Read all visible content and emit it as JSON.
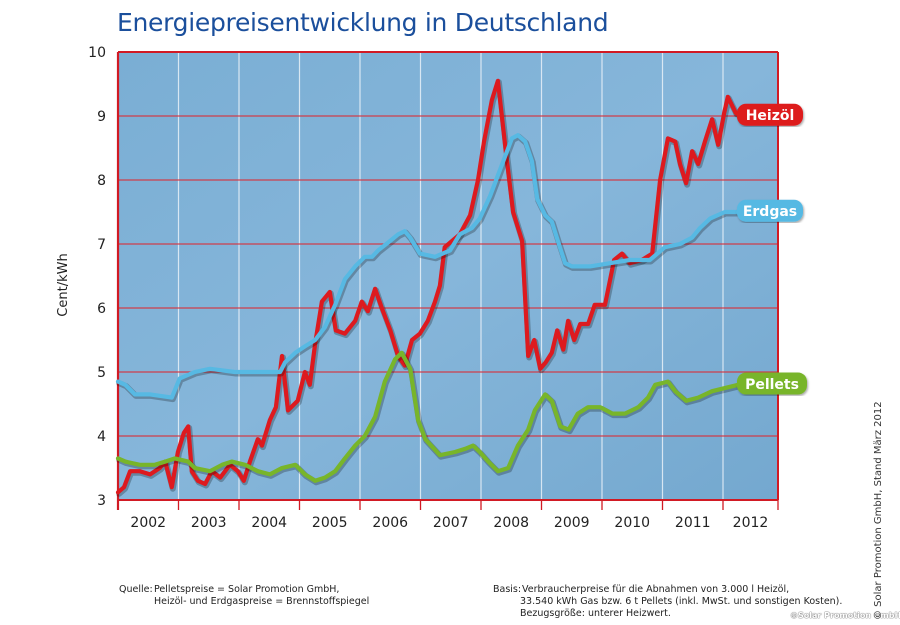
{
  "title": "Energiepreisentwicklung in Deutschland",
  "footer": {
    "source_label": "Quelle:",
    "source_lines": [
      "Pelletspreise = Solar Promotion GmbH,",
      "Heizöl- und Erdgaspreise = Brennstoffspiegel"
    ],
    "basis_label": "Basis:",
    "basis_lines": [
      "Verbraucherpreise für die Abnahmen von 3.000 l Heizöl,",
      "33.540 kWh Gas bzw. 6 t Pellets (inkl. MwSt. und sonstigen Kosten).",
      "Bezugsgröße: unterer Heizwert."
    ],
    "copyright": "©Solar Promotion GmbH",
    "side_note": "© Solar Promotion GmbH, Stand März 2012"
  },
  "colors": {
    "plot_bg": "#7daed3",
    "grid_h": "#d6323c",
    "grid_v": "#e8f1f8",
    "frame": "#d11a24",
    "title": "#1b4f9c",
    "heizoel": "#dd1a1f",
    "erdgas": "#57b9e3",
    "pellets": "#78b52a"
  },
  "chart_data": {
    "type": "line",
    "title": "Energiepreisentwicklung in Deutschland",
    "xlabel": "",
    "ylabel": "Cent/kWh",
    "xlim": [
      2002.0,
      2012.92
    ],
    "ylim": [
      3,
      10
    ],
    "yticks": [
      3,
      4,
      5,
      6,
      7,
      8,
      9,
      10
    ],
    "xtick_labels": [
      "2002",
      "2003",
      "2004",
      "2005",
      "2006",
      "2007",
      "2008",
      "2009",
      "2010",
      "2011",
      "2012"
    ],
    "grid": true,
    "legend": "labels at right end of each line",
    "series": [
      {
        "name": "Heizöl",
        "color_key": "heizoel",
        "points": [
          [
            2002.0,
            3.12
          ],
          [
            2002.1,
            3.2
          ],
          [
            2002.2,
            3.45
          ],
          [
            2002.36,
            3.45
          ],
          [
            2002.53,
            3.4
          ],
          [
            2002.69,
            3.5
          ],
          [
            2002.78,
            3.6
          ],
          [
            2002.89,
            3.2
          ],
          [
            2002.99,
            3.75
          ],
          [
            2003.09,
            4.05
          ],
          [
            2003.16,
            4.15
          ],
          [
            2003.22,
            3.45
          ],
          [
            2003.32,
            3.3
          ],
          [
            2003.44,
            3.25
          ],
          [
            2003.55,
            3.45
          ],
          [
            2003.69,
            3.35
          ],
          [
            2003.85,
            3.55
          ],
          [
            2003.98,
            3.45
          ],
          [
            2004.08,
            3.3
          ],
          [
            2004.18,
            3.6
          ],
          [
            2004.31,
            3.95
          ],
          [
            2004.38,
            3.85
          ],
          [
            2004.51,
            4.25
          ],
          [
            2004.61,
            4.45
          ],
          [
            2004.71,
            5.25
          ],
          [
            2004.81,
            4.4
          ],
          [
            2004.97,
            4.55
          ],
          [
            2005.09,
            5.0
          ],
          [
            2005.17,
            4.8
          ],
          [
            2005.26,
            5.45
          ],
          [
            2005.37,
            6.1
          ],
          [
            2005.5,
            6.25
          ],
          [
            2005.6,
            5.65
          ],
          [
            2005.75,
            5.6
          ],
          [
            2005.92,
            5.8
          ],
          [
            2006.03,
            6.1
          ],
          [
            2006.13,
            5.95
          ],
          [
            2006.25,
            6.3
          ],
          [
            2006.36,
            6.0
          ],
          [
            2006.5,
            5.65
          ],
          [
            2006.63,
            5.25
          ],
          [
            2006.74,
            5.1
          ],
          [
            2006.86,
            5.5
          ],
          [
            2006.99,
            5.6
          ],
          [
            2007.12,
            5.8
          ],
          [
            2007.24,
            6.1
          ],
          [
            2007.32,
            6.35
          ],
          [
            2007.4,
            6.95
          ],
          [
            2007.65,
            7.15
          ],
          [
            2007.82,
            7.45
          ],
          [
            2007.95,
            8.0
          ],
          [
            2008.05,
            8.6
          ],
          [
            2008.18,
            9.25
          ],
          [
            2008.28,
            9.55
          ],
          [
            2008.41,
            8.45
          ],
          [
            2008.53,
            7.5
          ],
          [
            2008.68,
            7.05
          ],
          [
            2008.78,
            5.25
          ],
          [
            2008.88,
            5.5
          ],
          [
            2008.98,
            5.05
          ],
          [
            2009.07,
            5.15
          ],
          [
            2009.17,
            5.3
          ],
          [
            2009.26,
            5.65
          ],
          [
            2009.36,
            5.35
          ],
          [
            2009.44,
            5.8
          ],
          [
            2009.54,
            5.5
          ],
          [
            2009.64,
            5.75
          ],
          [
            2009.77,
            5.75
          ],
          [
            2009.88,
            6.05
          ],
          [
            2010.05,
            6.05
          ],
          [
            2010.2,
            6.75
          ],
          [
            2010.33,
            6.85
          ],
          [
            2010.46,
            6.7
          ],
          [
            2010.66,
            6.75
          ],
          [
            2010.83,
            6.85
          ],
          [
            2010.96,
            8.0
          ],
          [
            2011.09,
            8.65
          ],
          [
            2011.21,
            8.6
          ],
          [
            2011.29,
            8.25
          ],
          [
            2011.39,
            7.95
          ],
          [
            2011.49,
            8.45
          ],
          [
            2011.59,
            8.25
          ],
          [
            2011.7,
            8.6
          ],
          [
            2011.82,
            8.95
          ],
          [
            2011.92,
            8.55
          ],
          [
            2012.02,
            9.05
          ],
          [
            2012.08,
            9.3
          ],
          [
            2012.21,
            9.05
          ]
        ]
      },
      {
        "name": "Erdgas",
        "color_key": "erdgas",
        "points": [
          [
            2002.0,
            4.85
          ],
          [
            2002.12,
            4.8
          ],
          [
            2002.28,
            4.65
          ],
          [
            2002.53,
            4.65
          ],
          [
            2002.89,
            4.6
          ],
          [
            2003.02,
            4.9
          ],
          [
            2003.27,
            5.0
          ],
          [
            2003.52,
            5.05
          ],
          [
            2003.93,
            5.0
          ],
          [
            2004.35,
            5.0
          ],
          [
            2004.68,
            5.0
          ],
          [
            2004.76,
            5.15
          ],
          [
            2004.93,
            5.3
          ],
          [
            2005.09,
            5.4
          ],
          [
            2005.26,
            5.5
          ],
          [
            2005.42,
            5.7
          ],
          [
            2005.59,
            6.05
          ],
          [
            2005.75,
            6.45
          ],
          [
            2005.92,
            6.65
          ],
          [
            2006.08,
            6.8
          ],
          [
            2006.2,
            6.8
          ],
          [
            2006.3,
            6.9
          ],
          [
            2006.5,
            7.05
          ],
          [
            2006.63,
            7.15
          ],
          [
            2006.74,
            7.2
          ],
          [
            2006.83,
            7.1
          ],
          [
            2006.99,
            6.85
          ],
          [
            2007.24,
            6.8
          ],
          [
            2007.49,
            6.9
          ],
          [
            2007.65,
            7.15
          ],
          [
            2007.85,
            7.25
          ],
          [
            2007.98,
            7.4
          ],
          [
            2008.15,
            7.75
          ],
          [
            2008.31,
            8.15
          ],
          [
            2008.51,
            8.65
          ],
          [
            2008.61,
            8.7
          ],
          [
            2008.73,
            8.6
          ],
          [
            2008.84,
            8.3
          ],
          [
            2008.93,
            7.7
          ],
          [
            2009.06,
            7.45
          ],
          [
            2009.17,
            7.35
          ],
          [
            2009.27,
            7.05
          ],
          [
            2009.39,
            6.7
          ],
          [
            2009.5,
            6.65
          ],
          [
            2009.8,
            6.65
          ],
          [
            2010.13,
            6.7
          ],
          [
            2010.46,
            6.75
          ],
          [
            2010.79,
            6.75
          ],
          [
            2011.04,
            6.95
          ],
          [
            2011.29,
            7.0
          ],
          [
            2011.49,
            7.1
          ],
          [
            2011.62,
            7.25
          ],
          [
            2011.79,
            7.4
          ],
          [
            2012.03,
            7.5
          ],
          [
            2012.25,
            7.5
          ]
        ]
      },
      {
        "name": "Pellets",
        "color_key": "pellets",
        "points": [
          [
            2002.0,
            3.65
          ],
          [
            2002.12,
            3.6
          ],
          [
            2002.36,
            3.55
          ],
          [
            2002.61,
            3.55
          ],
          [
            2002.78,
            3.6
          ],
          [
            2002.94,
            3.65
          ],
          [
            2003.16,
            3.6
          ],
          [
            2003.27,
            3.5
          ],
          [
            2003.52,
            3.45
          ],
          [
            2003.72,
            3.55
          ],
          [
            2003.88,
            3.6
          ],
          [
            2004.1,
            3.55
          ],
          [
            2004.31,
            3.45
          ],
          [
            2004.51,
            3.4
          ],
          [
            2004.71,
            3.5
          ],
          [
            2004.93,
            3.55
          ],
          [
            2005.09,
            3.4
          ],
          [
            2005.26,
            3.3
          ],
          [
            2005.42,
            3.35
          ],
          [
            2005.59,
            3.45
          ],
          [
            2005.75,
            3.65
          ],
          [
            2005.92,
            3.85
          ],
          [
            2006.08,
            4.0
          ],
          [
            2006.25,
            4.3
          ],
          [
            2006.41,
            4.85
          ],
          [
            2006.58,
            5.2
          ],
          [
            2006.69,
            5.3
          ],
          [
            2006.83,
            5.05
          ],
          [
            2006.96,
            4.25
          ],
          [
            2007.08,
            3.95
          ],
          [
            2007.32,
            3.7
          ],
          [
            2007.57,
            3.75
          ],
          [
            2007.74,
            3.8
          ],
          [
            2007.87,
            3.85
          ],
          [
            2007.98,
            3.75
          ],
          [
            2008.12,
            3.6
          ],
          [
            2008.28,
            3.45
          ],
          [
            2008.45,
            3.5
          ],
          [
            2008.61,
            3.85
          ],
          [
            2008.78,
            4.1
          ],
          [
            2008.89,
            4.4
          ],
          [
            2009.06,
            4.65
          ],
          [
            2009.17,
            4.55
          ],
          [
            2009.31,
            4.15
          ],
          [
            2009.45,
            4.1
          ],
          [
            2009.6,
            4.35
          ],
          [
            2009.77,
            4.45
          ],
          [
            2009.97,
            4.45
          ],
          [
            2010.17,
            4.35
          ],
          [
            2010.38,
            4.35
          ],
          [
            2010.6,
            4.45
          ],
          [
            2010.76,
            4.6
          ],
          [
            2010.88,
            4.8
          ],
          [
            2011.09,
            4.85
          ],
          [
            2011.21,
            4.7
          ],
          [
            2011.39,
            4.55
          ],
          [
            2011.59,
            4.6
          ],
          [
            2011.82,
            4.7
          ],
          [
            2012.25,
            4.8
          ]
        ]
      }
    ]
  }
}
